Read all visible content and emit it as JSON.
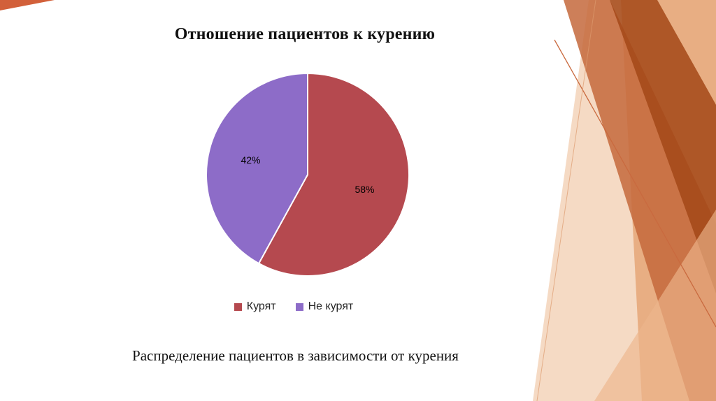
{
  "slide": {
    "title": "Отношение пациентов к курению",
    "caption": "Распределение пациентов в зависимости от курения"
  },
  "chart_data": {
    "type": "pie",
    "title": "Отношение пациентов к курению",
    "labels": [
      "Курят",
      "Не курят"
    ],
    "values": [
      58,
      42
    ],
    "value_labels": [
      "58%",
      "42%"
    ],
    "colors": [
      "#b5494f",
      "#8d6cc8"
    ],
    "legend_position": "bottom",
    "start_angle_deg": 0,
    "direction": "clockwise",
    "label_color": "#000000"
  },
  "theme": {
    "accent_dark_rust": "#a34818",
    "accent_orange": "#c4683c",
    "accent_salmon": "#e5a273",
    "accent_pale_peach": "#f2cdb0"
  }
}
